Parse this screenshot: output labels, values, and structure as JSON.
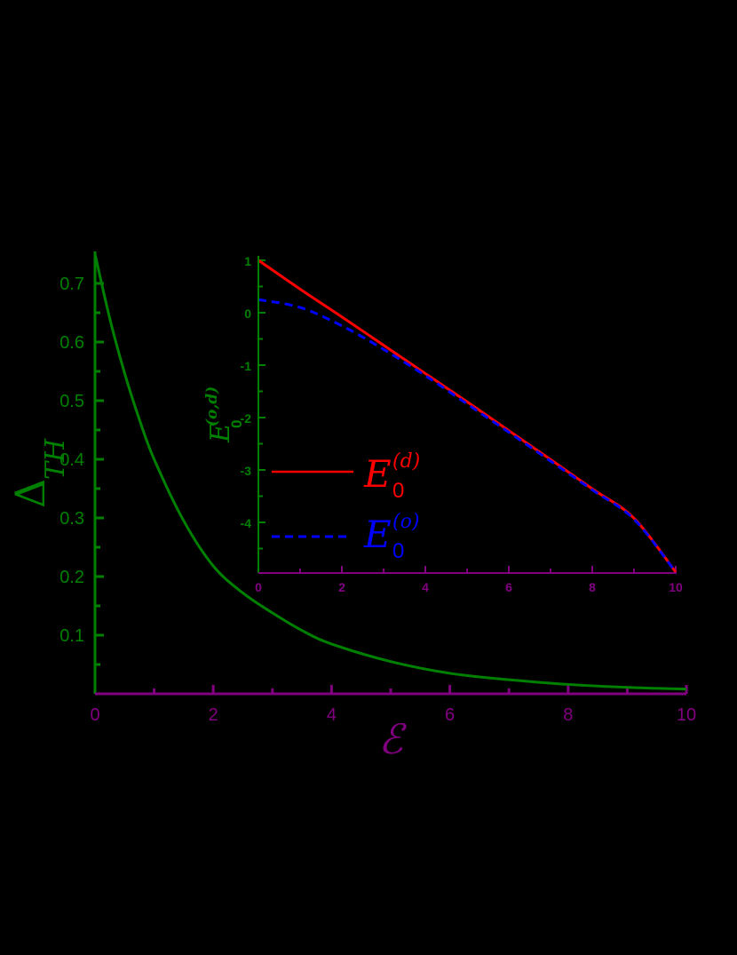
{
  "chart_data": [
    {
      "type": "line",
      "role": "main",
      "title": "",
      "xlabel": "ℰ",
      "ylabel": "Δ_TH",
      "ylabel_main": "Δ",
      "ylabel_sub": "TH",
      "xlim": [
        0,
        10
      ],
      "ylim": [
        0,
        0.75
      ],
      "xticks": [
        0,
        2,
        4,
        6,
        8,
        10
      ],
      "xtick_labels": [
        "0",
        "2",
        "4",
        "6",
        "8",
        "10"
      ],
      "yticks": [
        0.1,
        0.2,
        0.3,
        0.4,
        0.5,
        0.6,
        0.7
      ],
      "ytick_labels": [
        "0.1",
        "0.2",
        "0.3",
        "0.4",
        "0.5",
        "0.6",
        "0.7"
      ],
      "grid": false,
      "colors": {
        "x_axis": "#800080",
        "y_axis": "#008000",
        "line": "#008000",
        "background": "#000000"
      },
      "series": [
        {
          "name": "Δ_TH",
          "color": "#008000",
          "style": "solid",
          "x": [
            0,
            0.25,
            0.5,
            0.75,
            1,
            1.5,
            2,
            2.5,
            3,
            3.5,
            4,
            5,
            6,
            7,
            8,
            9,
            10
          ],
          "values": [
            0.75,
            0.64,
            0.547,
            0.468,
            0.4,
            0.295,
            0.218,
            0.172,
            0.138,
            0.108,
            0.085,
            0.055,
            0.035,
            0.024,
            0.016,
            0.011,
            0.008
          ]
        }
      ]
    },
    {
      "type": "line",
      "role": "inset",
      "title": "",
      "xlabel": "",
      "ylabel": "E_0^(o,d)",
      "ylabel_main": "E",
      "ylabel_sup": "(o,d)",
      "ylabel_sub": "0",
      "xlim": [
        0,
        10
      ],
      "ylim": [
        -4.95,
        1
      ],
      "xticks": [
        0,
        2,
        4,
        6,
        8,
        10
      ],
      "xtick_labels": [
        "0",
        "2",
        "4",
        "6",
        "8",
        "10"
      ],
      "yticks": [
        1,
        0,
        -1,
        -2,
        -3,
        -4
      ],
      "ytick_labels": [
        "1",
        "0",
        "-1",
        "-2",
        "-3",
        "-4"
      ],
      "grid": false,
      "legend_position": "lower left",
      "colors": {
        "x_axis": "#800080",
        "y_axis": "#008000"
      },
      "series": [
        {
          "name": "E_0^(d)",
          "legend_main": "E",
          "legend_sup": "(d)",
          "legend_sub": "0",
          "color": "#ff0000",
          "style": "solid",
          "x": [
            0,
            1,
            2,
            3,
            4,
            5,
            6,
            7,
            8,
            9,
            10
          ],
          "values": [
            1.0,
            0.45,
            -0.08,
            -0.62,
            -1.16,
            -1.7,
            -2.25,
            -2.8,
            -3.36,
            -3.92,
            -4.95
          ]
        },
        {
          "name": "E_0^(o)",
          "legend_main": "E",
          "legend_sup": "(o)",
          "legend_sub": "0",
          "color": "#0000ff",
          "style": "dashed",
          "x": [
            0,
            1,
            2,
            3,
            4,
            5,
            6,
            7,
            8,
            9,
            10
          ],
          "values": [
            0.25,
            0.1,
            -0.25,
            -0.7,
            -1.2,
            -1.74,
            -2.28,
            -2.83,
            -3.38,
            -3.94,
            -4.95
          ]
        }
      ]
    }
  ]
}
